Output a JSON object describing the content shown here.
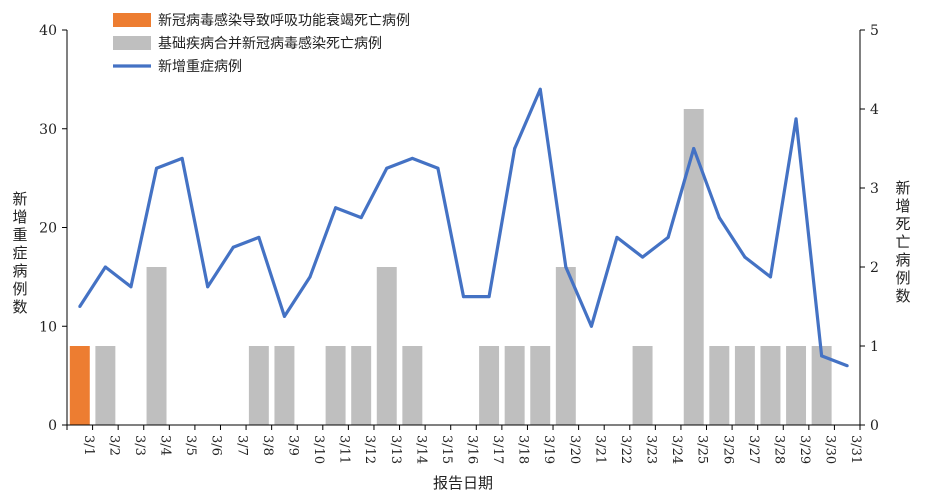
{
  "chart_data": {
    "type": "bar+line",
    "categories": [
      "3/1",
      "3/2",
      "3/3",
      "3/4",
      "3/5",
      "3/6",
      "3/7",
      "3/8",
      "3/9",
      "3/10",
      "3/11",
      "3/12",
      "3/13",
      "3/14",
      "3/15",
      "3/16",
      "3/17",
      "3/18",
      "3/19",
      "3/20",
      "3/21",
      "3/22",
      "3/23",
      "3/24",
      "3/25",
      "3/26",
      "3/27",
      "3/28",
      "3/29",
      "3/30",
      "3/31"
    ],
    "xlabel": "报告日期",
    "ylabel_left": "新增重症病例数",
    "ylabel_right": "新增死亡病例数",
    "ylim_left": [
      0,
      40
    ],
    "yticks_left": [
      0,
      10,
      20,
      30,
      40
    ],
    "ylim_right": [
      0,
      5
    ],
    "yticks_right": [
      0,
      1,
      2,
      3,
      4,
      5
    ],
    "grid": false,
    "legend_position": "top-left",
    "series": [
      {
        "name": "新冠病毒感染导致呼吸功能衰竭死亡病例",
        "type": "bar",
        "axis": "right",
        "color": "#ED7D31",
        "values": [
          1,
          0,
          0,
          0,
          0,
          0,
          0,
          0,
          0,
          0,
          0,
          0,
          0,
          0,
          0,
          0,
          0,
          0,
          0,
          0,
          0,
          0,
          0,
          0,
          0,
          0,
          0,
          0,
          0,
          0,
          0
        ]
      },
      {
        "name": "基础疾病合并新冠病毒感染死亡病例",
        "type": "bar",
        "axis": "right",
        "color": "#BFBFBF",
        "values": [
          0,
          1,
          0,
          2,
          0,
          0,
          0,
          1,
          1,
          0,
          1,
          1,
          2,
          1,
          0,
          0,
          1,
          1,
          1,
          2,
          0,
          0,
          1,
          0,
          4,
          1,
          1,
          1,
          1,
          1,
          0
        ]
      },
      {
        "name": "新增重症病例",
        "type": "line",
        "axis": "left",
        "color": "#4472C4",
        "values": [
          12,
          16,
          14,
          26,
          27,
          14,
          18,
          19,
          11,
          15,
          22,
          21,
          26,
          27,
          26,
          13,
          13,
          28,
          34,
          16,
          10,
          19,
          17,
          19,
          28,
          21,
          17,
          15,
          31,
          7,
          6
        ]
      }
    ]
  }
}
